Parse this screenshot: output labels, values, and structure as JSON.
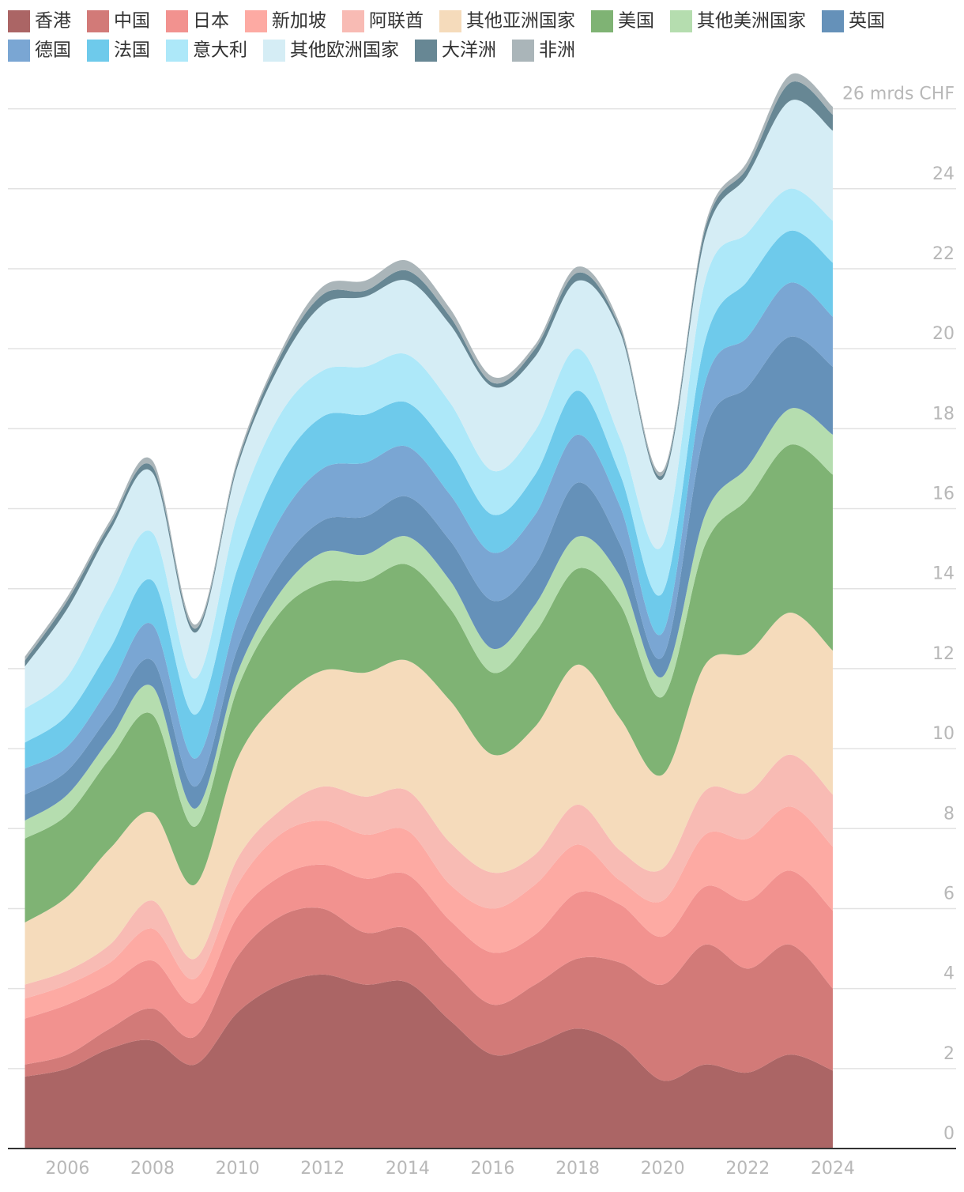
{
  "chart_data": {
    "type": "stacked-area",
    "x": [
      2005,
      2006,
      2007,
      2008,
      2009,
      2010,
      2011,
      2012,
      2013,
      2014,
      2015,
      2016,
      2017,
      2018,
      2019,
      2020,
      2021,
      2022,
      2023,
      2024
    ],
    "series": [
      {
        "name": "香港",
        "color": "#ab6565",
        "values": [
          1.8,
          2.0,
          2.5,
          2.7,
          2.1,
          3.4,
          4.1,
          4.35,
          4.1,
          4.15,
          3.2,
          2.35,
          2.6,
          3.0,
          2.6,
          1.7,
          2.1,
          1.9,
          2.35,
          1.95
        ]
      },
      {
        "name": "中国",
        "color": "#d27a78",
        "values": [
          0.3,
          0.35,
          0.5,
          0.8,
          0.7,
          1.4,
          1.7,
          1.65,
          1.3,
          1.35,
          1.3,
          1.25,
          1.5,
          1.75,
          2.05,
          2.4,
          3.0,
          2.6,
          2.75,
          2.05
        ]
      },
      {
        "name": "日本",
        "color": "#f2928f",
        "values": [
          1.15,
          1.25,
          1.1,
          1.2,
          0.85,
          1.0,
          1.0,
          1.1,
          1.35,
          1.35,
          1.2,
          1.3,
          1.25,
          1.65,
          1.45,
          1.2,
          1.45,
          1.7,
          1.85,
          1.95
        ]
      },
      {
        "name": "新加坡",
        "color": "#fdaaa3",
        "values": [
          0.5,
          0.5,
          0.55,
          0.8,
          0.6,
          0.8,
          1.05,
          1.1,
          1.1,
          1.1,
          0.9,
          1.1,
          1.25,
          1.2,
          0.6,
          0.9,
          1.3,
          1.55,
          1.6,
          1.6
        ]
      },
      {
        "name": "阿联酋",
        "color": "#f8bbb4",
        "values": [
          0.35,
          0.35,
          0.45,
          0.7,
          0.5,
          0.65,
          0.6,
          0.85,
          0.95,
          1.0,
          1.05,
          0.9,
          0.75,
          1.0,
          0.75,
          0.8,
          1.1,
          1.15,
          1.3,
          1.3
        ]
      },
      {
        "name": "其他亚洲国家",
        "color": "#f5dbbb",
        "values": [
          1.55,
          1.85,
          2.4,
          2.2,
          1.85,
          2.5,
          2.75,
          2.9,
          3.1,
          3.25,
          3.55,
          2.95,
          3.2,
          3.5,
          3.3,
          2.35,
          3.15,
          3.5,
          3.55,
          3.6
        ]
      },
      {
        "name": "美国",
        "color": "#7fb374",
        "values": [
          2.1,
          2.05,
          2.25,
          2.45,
          1.45,
          1.75,
          2.2,
          2.2,
          2.3,
          2.4,
          2.3,
          2.05,
          2.35,
          2.4,
          2.85,
          1.95,
          3.0,
          3.85,
          4.2,
          4.4
        ]
      },
      {
        "name": "其他美洲国家",
        "color": "#b5ddaf",
        "values": [
          0.45,
          0.5,
          0.5,
          0.7,
          0.45,
          0.4,
          0.5,
          0.75,
          0.65,
          0.7,
          0.7,
          0.6,
          0.7,
          0.8,
          0.7,
          0.5,
          0.75,
          0.8,
          0.9,
          1.0
        ]
      },
      {
        "name": "英国",
        "color": "#6591b9",
        "values": [
          0.65,
          0.6,
          0.6,
          0.65,
          0.55,
          0.6,
          0.7,
          0.8,
          0.95,
          1.0,
          1.0,
          1.2,
          1.0,
          1.35,
          0.8,
          0.5,
          2.1,
          2.0,
          1.8,
          1.7
        ]
      },
      {
        "name": "德国",
        "color": "#7aa6d3",
        "values": [
          0.65,
          0.6,
          0.7,
          0.9,
          0.7,
          0.8,
          1.15,
          1.3,
          1.35,
          1.25,
          1.15,
          1.2,
          1.25,
          1.2,
          0.95,
          0.6,
          1.2,
          1.25,
          1.35,
          1.25
        ]
      },
      {
        "name": "法国",
        "color": "#6ecaeb",
        "values": [
          0.65,
          0.8,
          0.95,
          1.1,
          1.1,
          1.2,
          1.3,
          1.3,
          1.2,
          1.1,
          1.1,
          0.95,
          1.0,
          1.1,
          0.8,
          1.0,
          1.05,
          1.4,
          1.3,
          1.35
        ]
      },
      {
        "name": "意大利",
        "color": "#ade8f9",
        "values": [
          0.85,
          0.95,
          1.3,
          1.2,
          0.9,
          1.35,
          1.3,
          1.15,
          1.2,
          1.2,
          1.2,
          1.1,
          1.1,
          1.05,
          0.9,
          1.2,
          1.5,
          1.2,
          1.05,
          1.05
        ]
      },
      {
        "name": "其他欧洲国家",
        "color": "#d5edf5",
        "values": [
          1.05,
          1.7,
          1.65,
          1.5,
          1.15,
          1.2,
          1.25,
          1.65,
          1.75,
          1.85,
          1.95,
          2.1,
          1.85,
          1.7,
          2.65,
          1.65,
          1.1,
          1.45,
          2.2,
          2.25
        ]
      },
      {
        "name": "大洋洲",
        "color": "#678794",
        "values": [
          0.15,
          0.2,
          0.15,
          0.15,
          0.1,
          0.1,
          0.2,
          0.25,
          0.15,
          0.25,
          0.2,
          0.1,
          0.2,
          0.2,
          0.1,
          0.1,
          0.2,
          0.2,
          0.45,
          0.4
        ]
      },
      {
        "name": "非洲",
        "color": "#aab5b9",
        "values": [
          0.1,
          0.1,
          0.1,
          0.15,
          0.1,
          0.1,
          0.1,
          0.2,
          0.25,
          0.25,
          0.2,
          0.15,
          0.1,
          0.15,
          0.1,
          0.1,
          0.1,
          0.15,
          0.2,
          0.2
        ]
      }
    ],
    "xlim": [
      2004.6,
      2026.9
    ],
    "xticks": [
      2006,
      2008,
      2010,
      2012,
      2014,
      2016,
      2018,
      2020,
      2022,
      2024
    ],
    "ylim": [
      0,
      27
    ],
    "yticks": [
      0,
      2,
      4,
      6,
      8,
      10,
      12,
      14,
      16,
      18,
      20,
      22,
      24,
      {
        "value": 26,
        "label": "26 mrds CHF"
      }
    ],
    "grid": true
  }
}
